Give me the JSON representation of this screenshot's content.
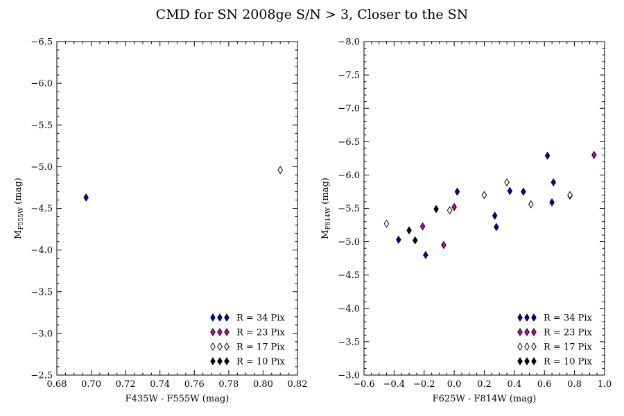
{
  "figure": {
    "title": "CMD for SN 2008ge S/N > 3, Closer to the SN"
  },
  "colors": {
    "R34": "#0000cc",
    "R23": "#cc00aa",
    "R17": "#ffffff",
    "R10": "#000000"
  },
  "chart_data": [
    {
      "type": "scatter",
      "xlabel": "F435W - F555W (mag)",
      "ylabel_main": "M",
      "ylabel_sub": "F555W",
      "ylabel_unit": " (mag)",
      "xlim": [
        0.68,
        0.82
      ],
      "ylim": [
        -2.5,
        -6.5
      ],
      "xticks": [
        "0.68",
        "0.70",
        "0.72",
        "0.74",
        "0.76",
        "0.78",
        "0.80",
        "0.82"
      ],
      "yticks": [
        "−6.5",
        "−6.0",
        "−5.5",
        "−5.0",
        "−4.5",
        "−4.0",
        "−3.5",
        "−3.0",
        "−2.5"
      ],
      "legend_position": "lower-right",
      "series": [
        {
          "name": "R = 34 Pix",
          "color_key": "R34",
          "points": [
            [
              0.697,
              -4.63
            ]
          ]
        },
        {
          "name": "R = 23 Pix",
          "color_key": "R23",
          "points": []
        },
        {
          "name": "R = 17 Pix",
          "color_key": "R17",
          "points": [
            [
              0.81,
              -4.96
            ]
          ]
        },
        {
          "name": "R = 10 Pix",
          "color_key": "R10",
          "points": []
        }
      ]
    },
    {
      "type": "scatter",
      "xlabel": "F625W - F814W (mag)",
      "ylabel_main": "M",
      "ylabel_sub": "F814W",
      "ylabel_unit": " (mag)",
      "xlim": [
        -0.6,
        1.0
      ],
      "ylim": [
        -3.0,
        -8.0
      ],
      "xticks": [
        "−0.6",
        "−0.4",
        "−0.2",
        "0.0",
        "0.2",
        "0.4",
        "0.6",
        "0.8",
        "1.0"
      ],
      "yticks": [
        "−8.0",
        "−7.5",
        "−7.0",
        "−6.5",
        "−6.0",
        "−5.5",
        "−5.0",
        "−4.5",
        "−4.0",
        "−3.5",
        "−3.0"
      ],
      "legend_position": "lower-right",
      "series": [
        {
          "name": "R = 34 Pix",
          "color_key": "R34",
          "points": [
            [
              -0.37,
              -5.03
            ],
            [
              -0.19,
              -4.8
            ],
            [
              0.02,
              -5.75
            ],
            [
              0.27,
              -5.39
            ],
            [
              0.28,
              -5.22
            ],
            [
              0.37,
              -5.76
            ],
            [
              0.46,
              -5.75
            ],
            [
              0.62,
              -6.29
            ],
            [
              0.65,
              -5.59
            ],
            [
              0.66,
              -5.89
            ],
            [
              0.77,
              -5.69
            ]
          ]
        },
        {
          "name": "R = 23 Pix",
          "color_key": "R23",
          "points": [
            [
              -0.21,
              -5.23
            ],
            [
              -0.07,
              -4.95
            ],
            [
              0.0,
              -5.52
            ],
            [
              0.93,
              -6.3
            ]
          ]
        },
        {
          "name": "R = 17 Pix",
          "color_key": "R17",
          "points": [
            [
              -0.45,
              -5.27
            ],
            [
              -0.03,
              -5.47
            ],
            [
              0.2,
              -5.7
            ],
            [
              0.35,
              -5.89
            ],
            [
              0.51,
              -5.56
            ],
            [
              0.77,
              -5.7
            ]
          ]
        },
        {
          "name": "R = 10 Pix",
          "color_key": "R10",
          "points": [
            [
              -0.3,
              -5.17
            ],
            [
              -0.26,
              -5.02
            ],
            [
              -0.12,
              -5.49
            ]
          ]
        }
      ]
    }
  ]
}
